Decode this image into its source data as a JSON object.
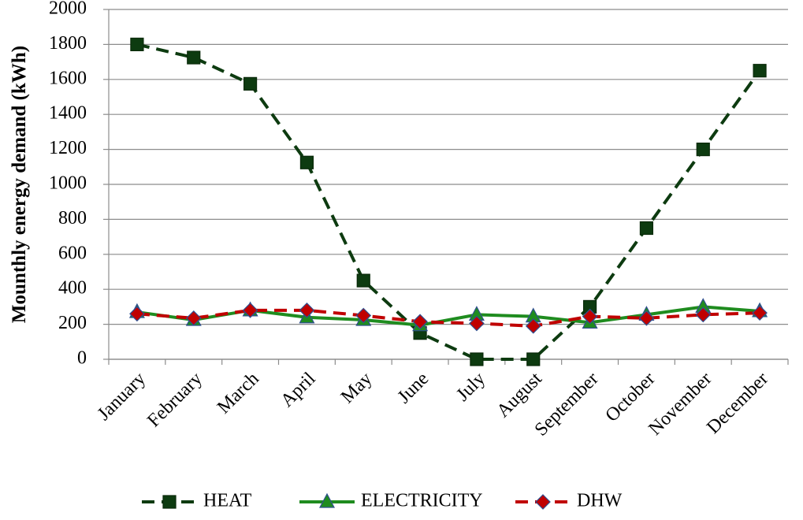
{
  "chart_data": {
    "type": "line",
    "y_label": "Mounthly  energy demand  (kWh)",
    "categories": [
      "January",
      "February",
      "March",
      "April",
      "May",
      "June",
      "July",
      "August",
      "September",
      "October",
      "November",
      "December"
    ],
    "series": [
      {
        "name": "HEAT",
        "color": "#0d3b10",
        "marker": "square",
        "dashed": true,
        "values": [
          1800,
          1725,
          1575,
          1125,
          450,
          150,
          0,
          0,
          300,
          750,
          1200,
          1650
        ]
      },
      {
        "name": "ELECTRICITY",
        "color": "#1f8c1f",
        "marker": "triangle",
        "dashed": false,
        "values": [
          270,
          225,
          280,
          240,
          225,
          195,
          255,
          245,
          210,
          255,
          300,
          275
        ]
      },
      {
        "name": "DHW",
        "color": "#c00000",
        "marker": "diamond",
        "dashed": true,
        "values": [
          260,
          235,
          280,
          280,
          250,
          215,
          205,
          190,
          245,
          235,
          255,
          265
        ]
      }
    ],
    "ylim": [
      0,
      2000
    ],
    "yticks": [
      0,
      200,
      400,
      600,
      800,
      1000,
      1200,
      1400,
      1600,
      1800,
      2000
    ],
    "grid": true,
    "legend": "bottom"
  }
}
